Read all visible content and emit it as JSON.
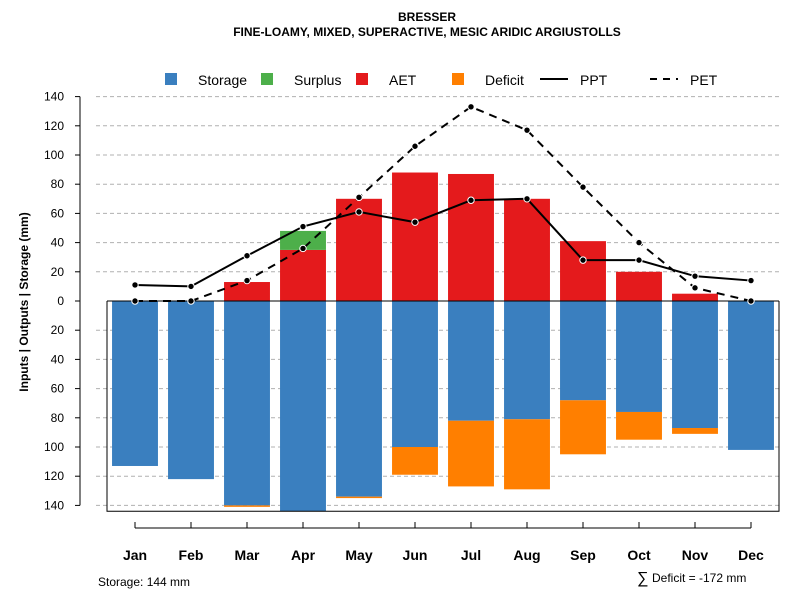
{
  "chart_data": {
    "type": "bar",
    "title": "BRESSER",
    "subtitle": "FINE-LOAMY, MIXED, SUPERACTIVE, MESIC ARIDIC ARGIUSTOLLS",
    "ylabel": "Inputs | Outputs | Storage    (mm)",
    "ylim": [
      -144,
      140
    ],
    "y_ticks": [
      140,
      120,
      100,
      80,
      60,
      40,
      20,
      0,
      20,
      40,
      60,
      80,
      100,
      120,
      140
    ],
    "categories": [
      "Jan",
      "Feb",
      "Mar",
      "Apr",
      "May",
      "Jun",
      "Jul",
      "Aug",
      "Sep",
      "Oct",
      "Nov",
      "Dec"
    ],
    "legend": [
      {
        "key": "storage",
        "label": "Storage",
        "kind": "box",
        "color": "#3a7fbf"
      },
      {
        "key": "surplus",
        "label": "Surplus",
        "kind": "box",
        "color": "#4daf4a"
      },
      {
        "key": "aet",
        "label": "AET",
        "kind": "box",
        "color": "#e41a1c"
      },
      {
        "key": "deficit",
        "label": "Deficit",
        "kind": "box",
        "color": "#ff7f00"
      },
      {
        "key": "ppt",
        "label": "PPT",
        "kind": "solid",
        "color": "#000000"
      },
      {
        "key": "pet",
        "label": "PET",
        "kind": "dashed",
        "color": "#000000"
      }
    ],
    "series": [
      {
        "name": "AET",
        "values": [
          0,
          0,
          13,
          35,
          70,
          88,
          87,
          70,
          41,
          20,
          5,
          0
        ]
      },
      {
        "name": "Surplus",
        "values": [
          0,
          0,
          0,
          13,
          0,
          0,
          0,
          0,
          0,
          0,
          0,
          0
        ]
      },
      {
        "name": "Storage",
        "values": [
          113,
          122,
          140,
          144,
          134,
          100,
          82,
          81,
          68,
          76,
          87,
          102
        ]
      },
      {
        "name": "Deficit",
        "values": [
          0,
          0,
          -1,
          0,
          -1,
          -19,
          -45,
          -48,
          -37,
          -19,
          -4,
          0
        ]
      },
      {
        "name": "PPT",
        "values": [
          11,
          10,
          31,
          51,
          61,
          54,
          69,
          70,
          28,
          28,
          17,
          14
        ]
      },
      {
        "name": "PET",
        "values": [
          0,
          0,
          14,
          36,
          71,
          106,
          133,
          117,
          78,
          40,
          9,
          0
        ]
      }
    ]
  },
  "footer": {
    "storage_text": "Storage: 144 mm",
    "deficit_symbol": "∑",
    "deficit_text": "Deficit = -172 mm"
  }
}
